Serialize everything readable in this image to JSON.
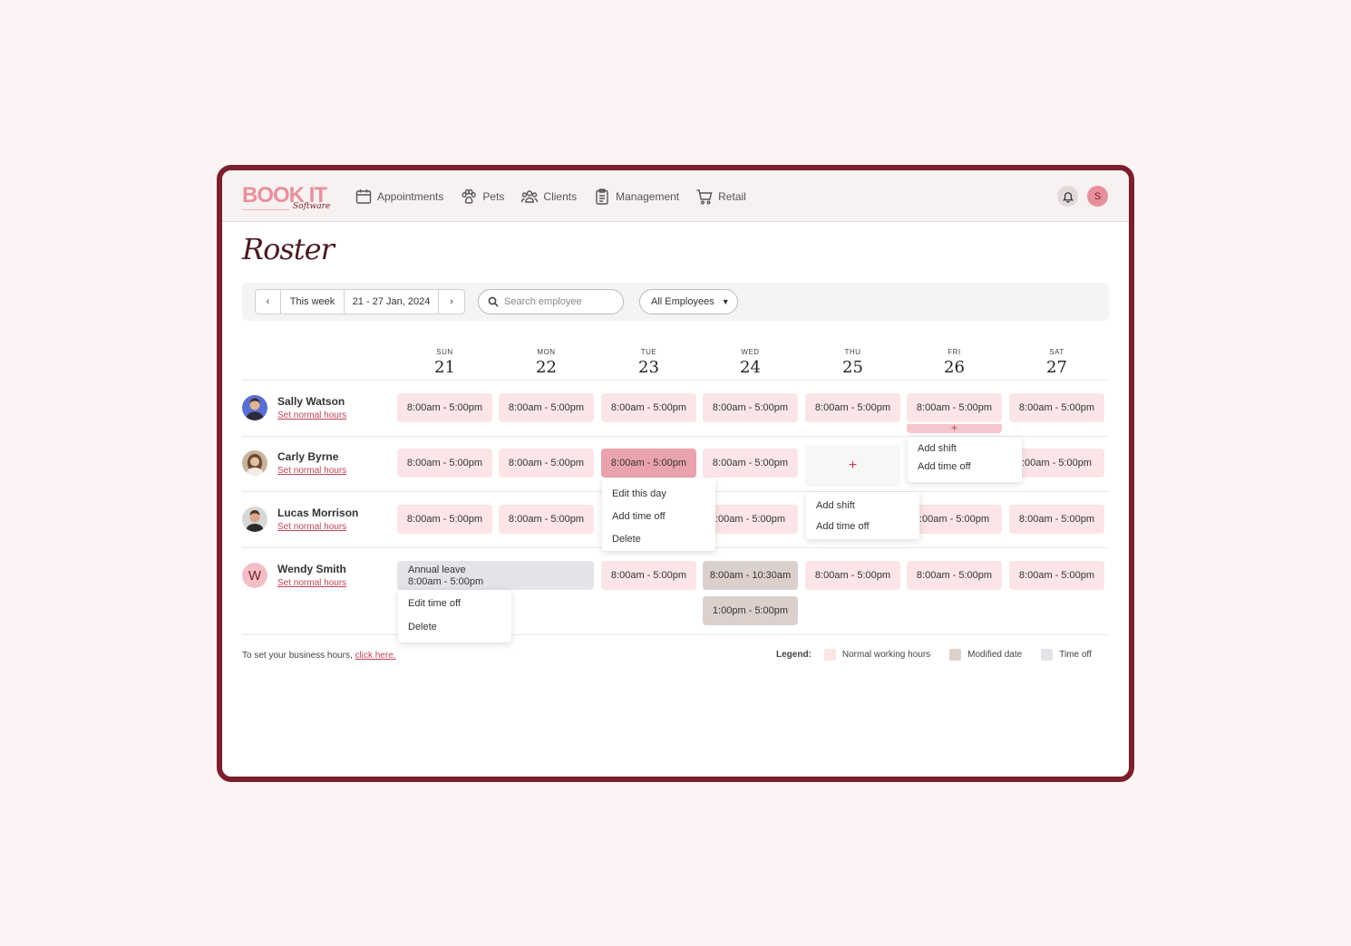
{
  "app": {
    "logo_main": "BOOK IT",
    "logo_sub": "Software",
    "user_initial": "S"
  },
  "nav": [
    {
      "label": "Appointments",
      "icon": "calendar-icon"
    },
    {
      "label": "Pets",
      "icon": "paw-icon"
    },
    {
      "label": "Clients",
      "icon": "users-icon"
    },
    {
      "label": "Management",
      "icon": "clipboard-icon"
    },
    {
      "label": "Retail",
      "icon": "cart-icon"
    }
  ],
  "page": {
    "title": "Roster"
  },
  "toolbar": {
    "prev": "‹",
    "this_week": "This week",
    "range": "21 - 27 Jan, 2024",
    "next": "›",
    "search_placeholder": "Search employee",
    "filter_value": "All Employees"
  },
  "days": [
    {
      "name": "SUN",
      "date": "21"
    },
    {
      "name": "MON",
      "date": "22"
    },
    {
      "name": "TUE",
      "date": "23"
    },
    {
      "name": "WED",
      "date": "24"
    },
    {
      "name": "THU",
      "date": "25"
    },
    {
      "name": "FRI",
      "date": "26"
    },
    {
      "name": "SAT",
      "date": "27"
    }
  ],
  "employees": [
    {
      "name": "Sally Watson",
      "link": "Set normal hours"
    },
    {
      "name": "Carly Byrne",
      "link": "Set normal hours"
    },
    {
      "name": "Lucas Morrison",
      "link": "Set normal hours"
    },
    {
      "name": "Wendy Smith",
      "link": "Set normal hours",
      "initial": "W"
    }
  ],
  "shift": "8:00am - 5:00pm",
  "shift_clipped": ":00am - 5:00pm",
  "leave": {
    "title": "Annual leave",
    "time": "8:00am - 5:00pm"
  },
  "modified": {
    "first": "8:00am - 10:30am",
    "second": "1:00pm - 5:00pm"
  },
  "plus": "+",
  "menus": {
    "fri_sally": [
      "Add shift",
      "Add time off"
    ],
    "tue_carly": [
      "Edit this day",
      "Add time off",
      "Delete"
    ],
    "thu_carly": [
      "Add shift",
      "Add time off"
    ],
    "leave_wendy": [
      "Edit time off",
      "Delete"
    ]
  },
  "footer": {
    "note": "To set your business hours, ",
    "note_link": "click here.",
    "legend_title": "Legend:",
    "legend": [
      {
        "label": "Normal working hours",
        "color": "#fbe5e7"
      },
      {
        "label": "Modified date",
        "color": "#dcd0cd"
      },
      {
        "label": "Time off",
        "color": "#e4e4e8"
      }
    ]
  },
  "colors": {
    "brand": "#7a1f2b",
    "accent": "#e8909c",
    "link": "#c1425a"
  }
}
